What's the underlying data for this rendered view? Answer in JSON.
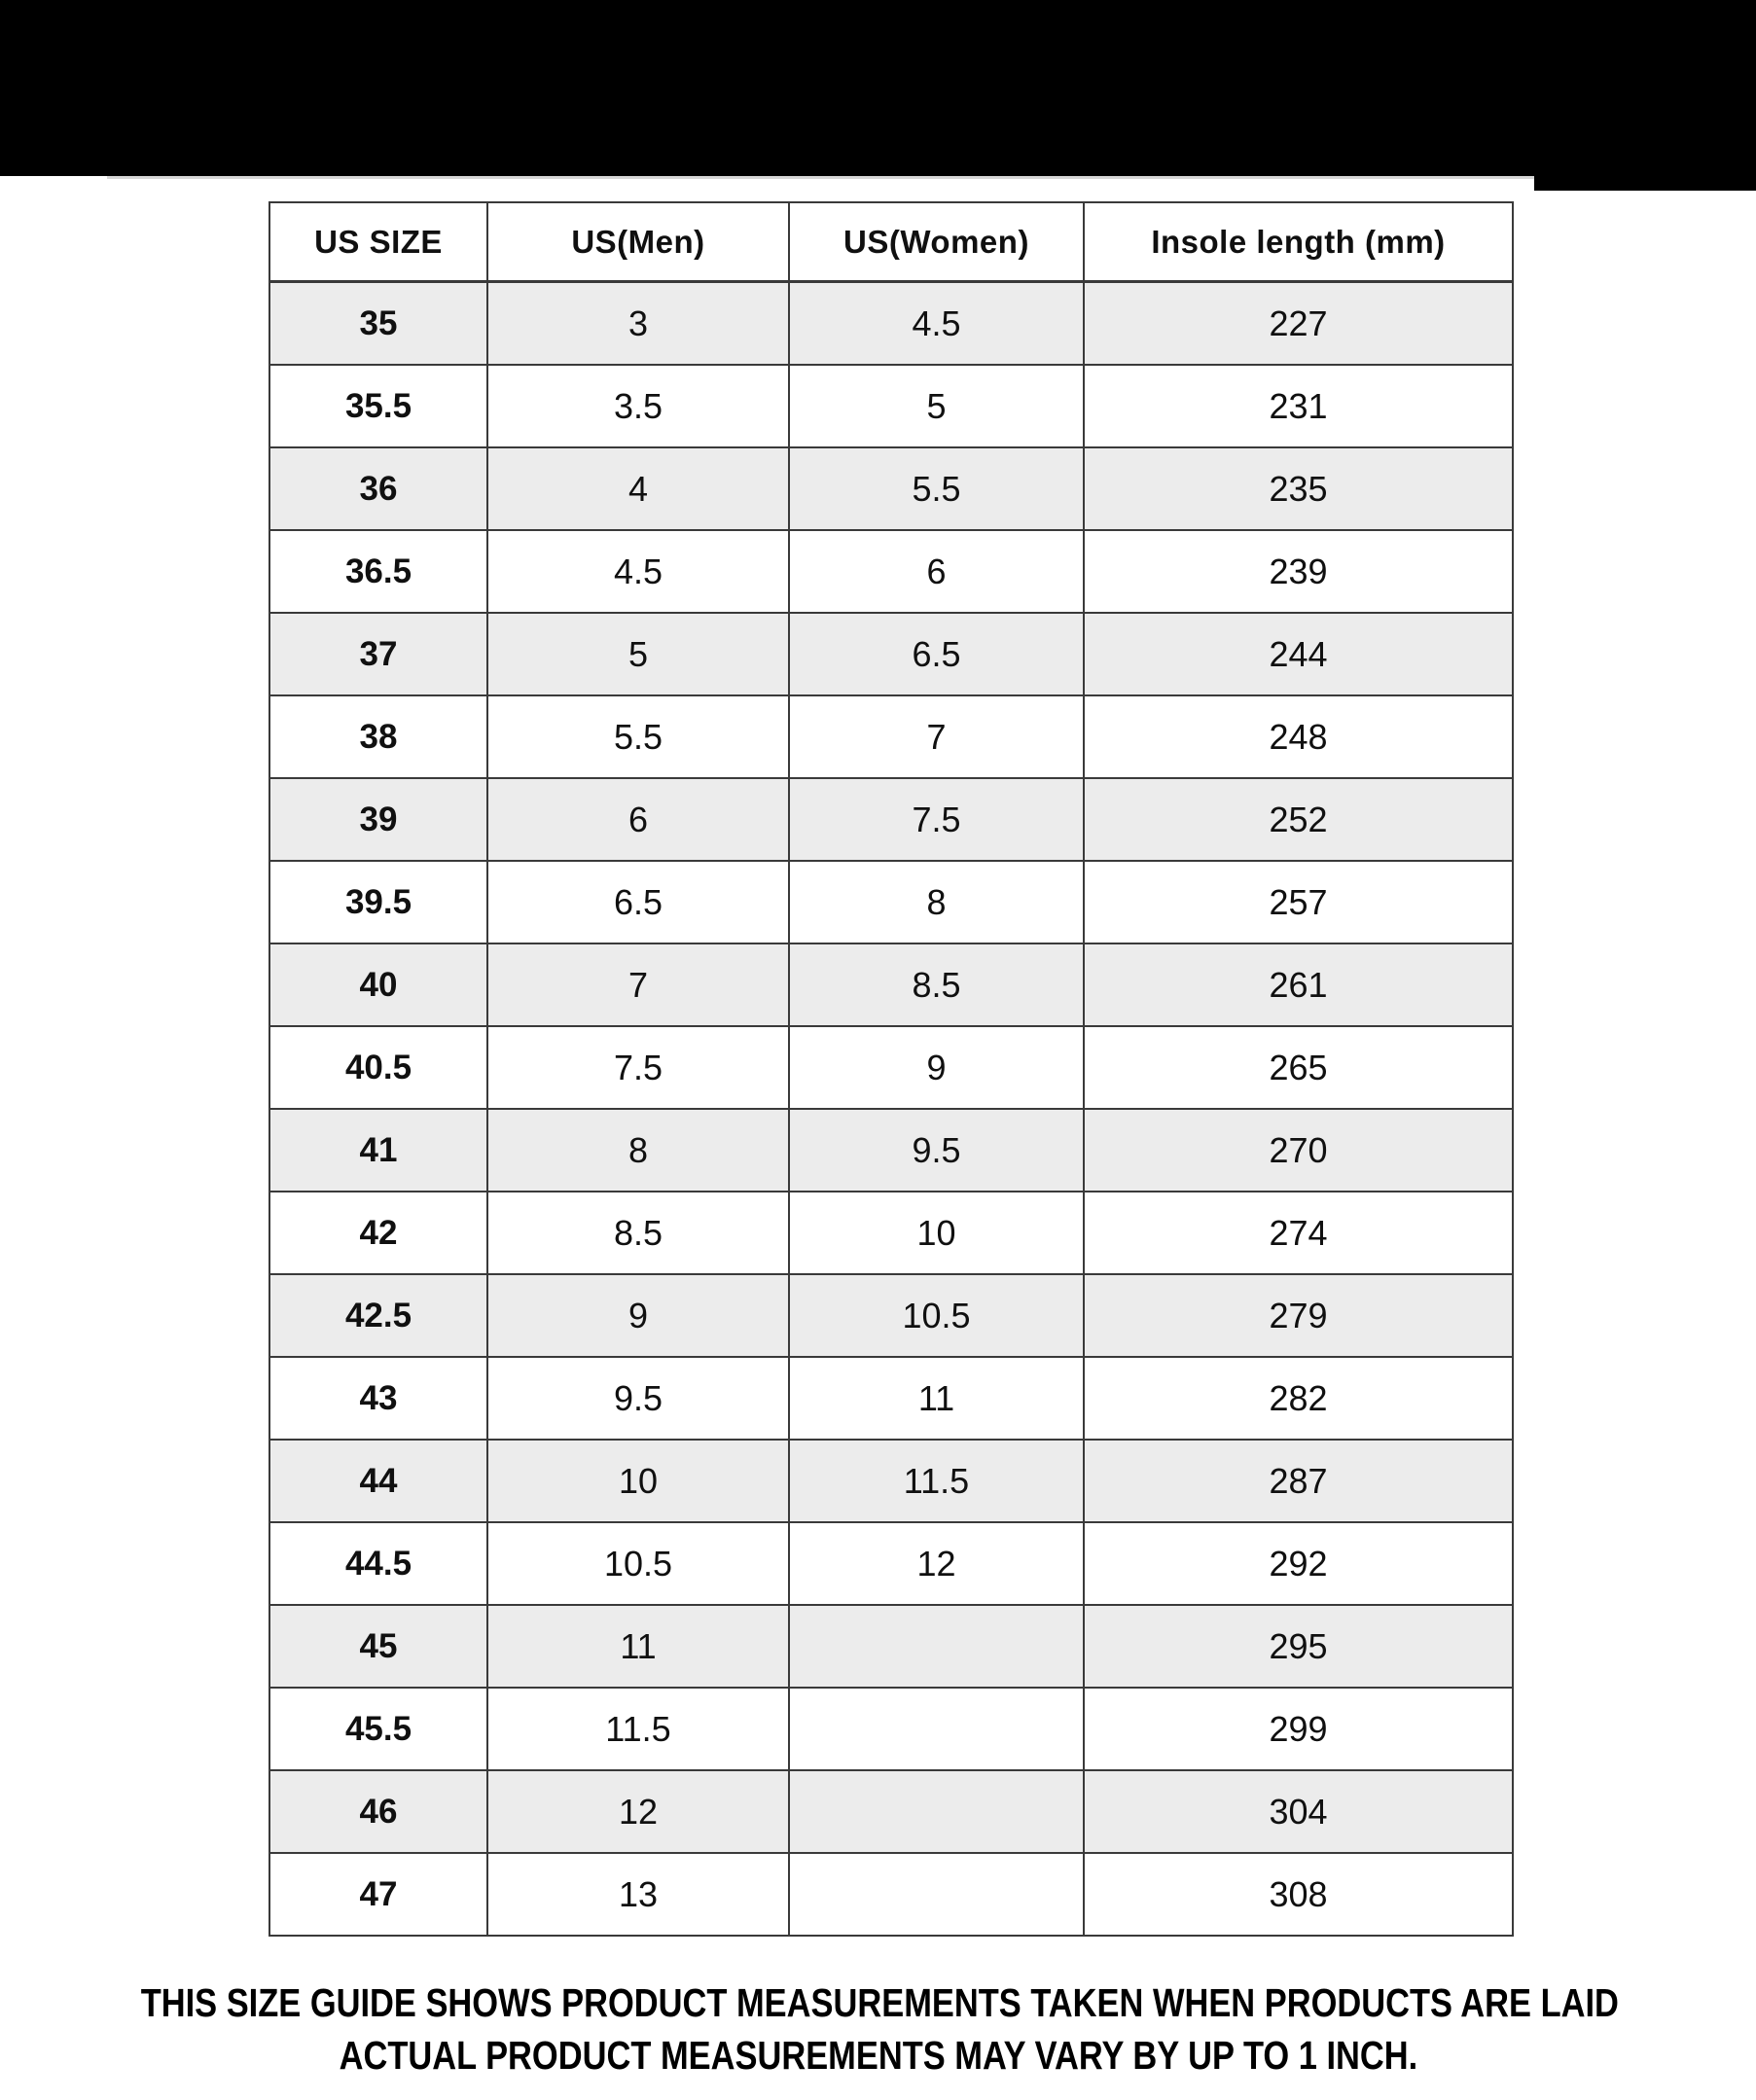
{
  "top_bar": {
    "color": "#000000"
  },
  "table": {
    "headers": [
      "US SIZE",
      "US(Men)",
      "US(Women)",
      "Insole length (mm)"
    ],
    "rows": [
      [
        "35",
        "3",
        "4.5",
        "227"
      ],
      [
        "35.5",
        "3.5",
        "5",
        "231"
      ],
      [
        "36",
        "4",
        "5.5",
        "235"
      ],
      [
        "36.5",
        "4.5",
        "6",
        "239"
      ],
      [
        "37",
        "5",
        "6.5",
        "244"
      ],
      [
        "38",
        "5.5",
        "7",
        "248"
      ],
      [
        "39",
        "6",
        "7.5",
        "252"
      ],
      [
        "39.5",
        "6.5",
        "8",
        "257"
      ],
      [
        "40",
        "7",
        "8.5",
        "261"
      ],
      [
        "40.5",
        "7.5",
        "9",
        "265"
      ],
      [
        "41",
        "8",
        "9.5",
        "270"
      ],
      [
        "42",
        "8.5",
        "10",
        "274"
      ],
      [
        "42.5",
        "9",
        "10.5",
        "279"
      ],
      [
        "43",
        "9.5",
        "11",
        "282"
      ],
      [
        "44",
        "10",
        "11.5",
        "287"
      ],
      [
        "44.5",
        "10.5",
        "12",
        "292"
      ],
      [
        "45",
        "11",
        "",
        "295"
      ],
      [
        "45.5",
        "11.5",
        "",
        "299"
      ],
      [
        "46",
        "12",
        "",
        "304"
      ],
      [
        "47",
        "13",
        "",
        "308"
      ]
    ],
    "colors": {
      "row_shaded": "#ececec",
      "row_plain": "#ffffff",
      "border": "#3a3a3a",
      "text": "#101010"
    }
  },
  "footer": {
    "line1": "THIS SIZE GUIDE SHOWS PRODUCT MEASUREMENTS TAKEN WHEN PRODUCTS ARE LAID",
    "line2": "ACTUAL PRODUCT MEASUREMENTS MAY VARY BY UP TO 1 INCH."
  },
  "chart_data": {
    "type": "table",
    "columns": [
      "US SIZE",
      "US(Men)",
      "US(Women)",
      "Insole length (mm)"
    ],
    "rows": [
      [
        "35",
        "3",
        "4.5",
        "227"
      ],
      [
        "35.5",
        "3.5",
        "5",
        "231"
      ],
      [
        "36",
        "4",
        "5.5",
        "235"
      ],
      [
        "36.5",
        "4.5",
        "6",
        "239"
      ],
      [
        "37",
        "5",
        "6.5",
        "244"
      ],
      [
        "38",
        "5.5",
        "7",
        "248"
      ],
      [
        "39",
        "6",
        "7.5",
        "252"
      ],
      [
        "39.5",
        "6.5",
        "8",
        "257"
      ],
      [
        "40",
        "7",
        "8.5",
        "261"
      ],
      [
        "40.5",
        "7.5",
        "9",
        "265"
      ],
      [
        "41",
        "8",
        "9.5",
        "270"
      ],
      [
        "42",
        "8.5",
        "10",
        "274"
      ],
      [
        "42.5",
        "9",
        "10.5",
        "279"
      ],
      [
        "43",
        "9.5",
        "11",
        "282"
      ],
      [
        "44",
        "10",
        "11.5",
        "287"
      ],
      [
        "44.5",
        "10.5",
        "12",
        "292"
      ],
      [
        "45",
        "11",
        "",
        "295"
      ],
      [
        "45.5",
        "11.5",
        "",
        "299"
      ],
      [
        "46",
        "12",
        "",
        "304"
      ],
      [
        "47",
        "13",
        "",
        "308"
      ]
    ],
    "notes": [
      "THIS SIZE GUIDE SHOWS PRODUCT MEASUREMENTS TAKEN WHEN PRODUCTS ARE LAID",
      "ACTUAL PRODUCT MEASUREMENTS MAY VARY BY UP TO 1 INCH."
    ]
  }
}
